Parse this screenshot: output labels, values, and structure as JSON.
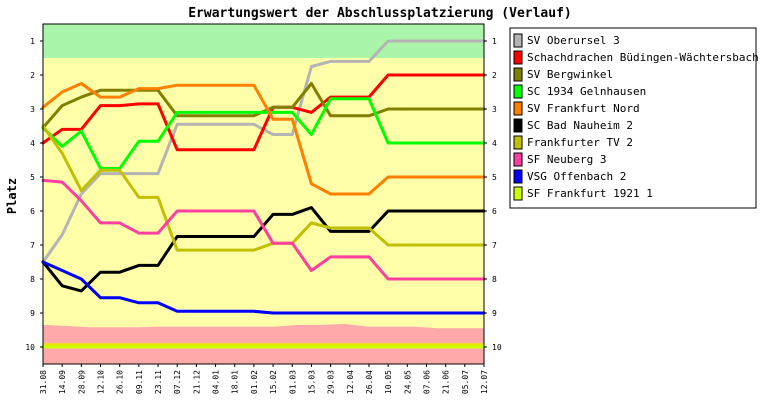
{
  "chart_data": {
    "type": "line",
    "title": "Erwartungswert der Abschlussplatzierung (Verlauf)",
    "ylabel": "Platz",
    "xlabel": "",
    "ylim": [
      1,
      10
    ],
    "y_inverted": true,
    "yticks": [
      1,
      2,
      3,
      4,
      5,
      6,
      7,
      8,
      9,
      10
    ],
    "grid": false,
    "legend_position": "right",
    "zones": [
      {
        "from": 0.5,
        "to": 1.5,
        "color": "#aaf5aa"
      },
      {
        "from": 1.5,
        "to": 9.5,
        "color": "#ffffaa"
      },
      {
        "from": 9.5,
        "to": 10.5,
        "color": "#ffaaaa"
      }
    ],
    "zone_bands": [
      {
        "name": "pink-band-upper",
        "y": [
          9.35,
          9.38,
          9.42,
          9.42,
          9.42,
          9.4,
          9.4,
          9.4,
          9.4,
          9.4,
          9.4,
          9.35,
          9.35,
          9.32,
          9.4,
          9.4,
          9.4,
          9.45,
          9.45,
          9.45
        ],
        "color": "#ffaaaa"
      },
      {
        "name": "yellow-stripe",
        "y": [
          9.95,
          9.95,
          9.95,
          9.95,
          9.95,
          9.95,
          9.95,
          9.95,
          9.95,
          9.95,
          9.95,
          9.95,
          9.95,
          9.95,
          9.95,
          9.95,
          9.95,
          9.95,
          9.95,
          9.95
        ],
        "color": "#e6e600"
      }
    ],
    "categories": [
      "31.08",
      "14.09",
      "28.09",
      "12.10",
      "26.10",
      "09.11",
      "23.11",
      "07.12",
      "21.12",
      "04.01",
      "18.01",
      "01.02",
      "15.02",
      "01.03",
      "15.03",
      "29.03",
      "12.04",
      "26.04",
      "10.05",
      "24.05",
      "07.06",
      "21.06",
      "05.07",
      "12.07"
    ],
    "series": [
      {
        "name": "SV Oberursel 3",
        "color": "#b4b4b4",
        "values": [
          7.5,
          6.7,
          5.5,
          4.9,
          4.9,
          4.9,
          4.9,
          3.45,
          3.45,
          3.45,
          3.45,
          3.45,
          3.75,
          3.75,
          1.75,
          1.6,
          1.6,
          1.6,
          1.0,
          1.0,
          1.0,
          1.0,
          1.0,
          1.0
        ]
      },
      {
        "name": "Schachdrachen Büdingen-Wächtersbach 1",
        "color": "#ff0000",
        "values": [
          4.0,
          3.6,
          3.6,
          2.9,
          2.9,
          2.85,
          2.85,
          4.2,
          4.2,
          4.2,
          4.2,
          4.2,
          2.95,
          2.95,
          3.1,
          2.65,
          2.65,
          2.65,
          2.0,
          2.0,
          2.0,
          2.0,
          2.0,
          2.0
        ]
      },
      {
        "name": "SV Bergwinkel",
        "color": "#808000",
        "values": [
          3.55,
          2.9,
          2.65,
          2.45,
          2.45,
          2.45,
          2.45,
          3.2,
          3.2,
          3.2,
          3.2,
          3.2,
          2.95,
          2.95,
          2.25,
          3.2,
          3.2,
          3.2,
          3.0,
          3.0,
          3.0,
          3.0,
          3.0,
          3.0
        ]
      },
      {
        "name": "SC 1934 Gelnhausen",
        "color": "#00ff00",
        "values": [
          3.55,
          4.1,
          3.65,
          4.75,
          4.75,
          3.95,
          3.95,
          3.1,
          3.1,
          3.1,
          3.1,
          3.1,
          3.1,
          3.1,
          3.75,
          2.7,
          2.7,
          2.7,
          4.0,
          4.0,
          4.0,
          4.0,
          4.0,
          4.0
        ]
      },
      {
        "name": "SV Frankfurt Nord",
        "color": "#ff8000",
        "values": [
          2.95,
          2.5,
          2.25,
          2.65,
          2.65,
          2.4,
          2.4,
          2.3,
          2.3,
          2.3,
          2.3,
          2.3,
          3.3,
          3.3,
          5.2,
          5.5,
          5.5,
          5.5,
          5.0,
          5.0,
          5.0,
          5.0,
          5.0,
          5.0
        ]
      },
      {
        "name": "SC Bad Nauheim 2",
        "color": "#000000",
        "values": [
          7.5,
          8.2,
          8.35,
          7.8,
          7.8,
          7.6,
          7.6,
          6.75,
          6.75,
          6.75,
          6.75,
          6.75,
          6.1,
          6.1,
          5.9,
          6.6,
          6.6,
          6.6,
          6.0,
          6.0,
          6.0,
          6.0,
          6.0,
          6.0
        ]
      },
      {
        "name": "Frankfurter TV 2",
        "color": "#c0c000",
        "values": [
          3.5,
          4.3,
          5.4,
          4.8,
          4.8,
          5.6,
          5.6,
          7.15,
          7.15,
          7.15,
          7.15,
          7.15,
          6.95,
          6.95,
          6.35,
          6.5,
          6.5,
          6.5,
          7.0,
          7.0,
          7.0,
          7.0,
          7.0,
          7.0
        ]
      },
      {
        "name": "SF Neuberg 3",
        "color": "#ff40a0",
        "values": [
          5.1,
          5.15,
          5.7,
          6.35,
          6.35,
          6.65,
          6.65,
          6.0,
          6.0,
          6.0,
          6.0,
          6.0,
          6.95,
          6.95,
          7.75,
          7.35,
          7.35,
          7.35,
          8.0,
          8.0,
          8.0,
          8.0,
          8.0,
          8.0
        ]
      },
      {
        "name": "VSG Offenbach 2",
        "color": "#0000ff",
        "values": [
          7.5,
          7.75,
          8.0,
          8.55,
          8.55,
          8.7,
          8.7,
          8.95,
          8.95,
          8.95,
          8.95,
          8.95,
          9.0,
          9.0,
          9.0,
          9.0,
          9.0,
          9.0,
          9.0,
          9.0,
          9.0,
          9.0,
          9.0,
          9.0
        ]
      },
      {
        "name": "SF Frankfurt 1921 1",
        "color": "#ccff00",
        "values": [
          10.0,
          10.0,
          10.0,
          10.0,
          10.0,
          10.0,
          10.0,
          10.0,
          10.0,
          10.0,
          10.0,
          10.0,
          10.0,
          10.0,
          10.0,
          10.0,
          10.0,
          10.0,
          10.0,
          10.0,
          10.0,
          10.0,
          10.0,
          10.0
        ]
      }
    ]
  }
}
